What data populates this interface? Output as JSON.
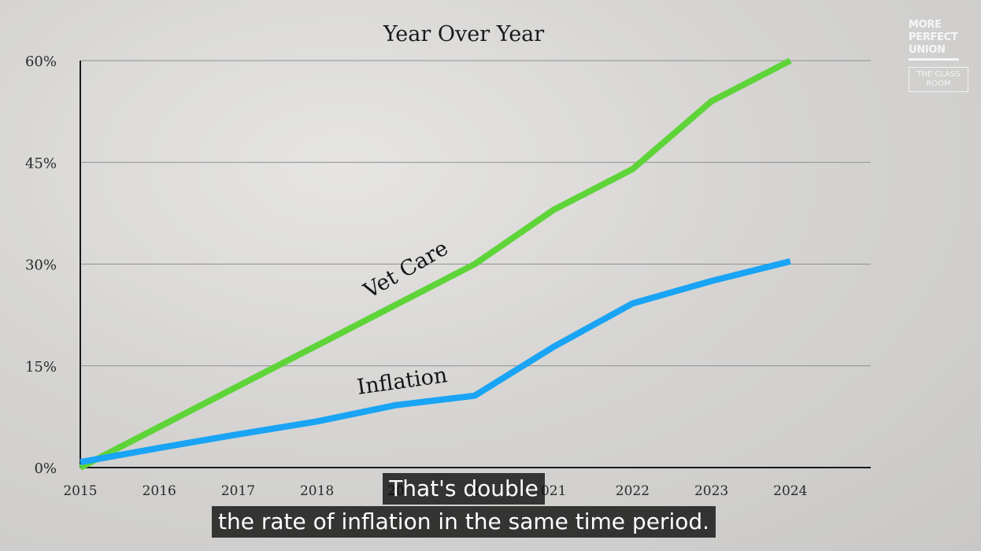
{
  "chart_data": {
    "type": "line",
    "title": "Year Over Year",
    "x": [
      2015,
      2016,
      2017,
      2018,
      2019,
      2020,
      2021,
      2022,
      2023,
      2024
    ],
    "x_tick_labels": [
      "2015",
      "2016",
      "2017",
      "2018",
      "20",
      "2",
      "021",
      "2022",
      "2023",
      "2024"
    ],
    "y_tick_labels": [
      "0%",
      "15%",
      "30%",
      "45%",
      "60%"
    ],
    "y_ticks": [
      0,
      15,
      30,
      45,
      60
    ],
    "ylim": [
      0,
      60
    ],
    "grid": true,
    "series": [
      {
        "name": "Vet Care",
        "color": "#5fd439",
        "values": [
          0,
          6,
          12,
          18,
          24,
          30,
          38,
          44,
          54,
          60
        ]
      },
      {
        "name": "Inflation",
        "color": "#19a4f5",
        "values": [
          0.8,
          2.9,
          4.9,
          6.8,
          9.2,
          10.6,
          17.8,
          24.2,
          27.5,
          30.4
        ]
      }
    ]
  },
  "brand": {
    "lines": [
      "MORE",
      "PERFECT",
      "UNION"
    ],
    "badge": [
      "THE CLASS",
      "ROOM"
    ]
  },
  "captions": [
    "That's double",
    "the rate of inflation in the same time period."
  ]
}
